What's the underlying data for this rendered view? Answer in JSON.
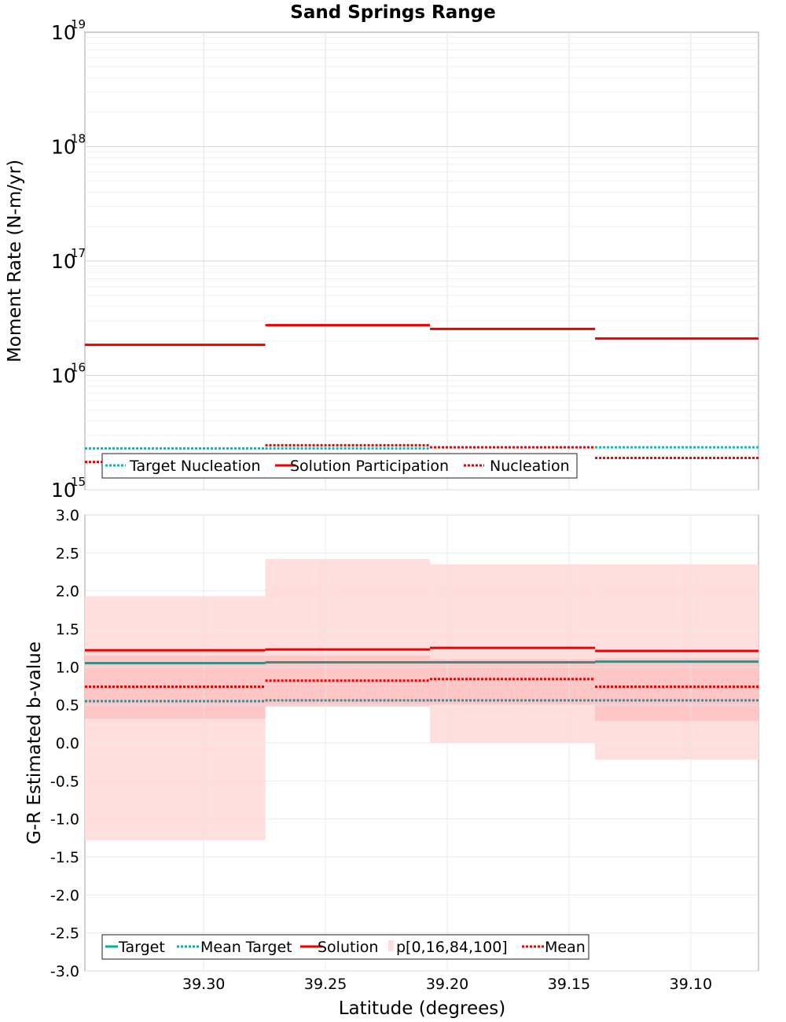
{
  "chart_data": [
    {
      "type": "line",
      "title": "Sand Springs Range",
      "xlabel": "",
      "ylabel": "Moment Rate (N-m/yr)",
      "yscale": "log",
      "ylim": [
        1000000000000000.0,
        1e+19
      ],
      "xlim": [
        39.3488,
        39.0722
      ],
      "y_ticks": [
        {
          "base": "10",
          "exp": "15"
        },
        {
          "base": "10",
          "exp": "16"
        },
        {
          "base": "10",
          "exp": "17"
        },
        {
          "base": "10",
          "exp": "18"
        },
        {
          "base": "10",
          "exp": "19"
        }
      ],
      "segments": [
        {
          "x0": 39.3488,
          "x1": 39.2747
        },
        {
          "x0": 39.2747,
          "x1": 39.2071
        },
        {
          "x0": 39.2071,
          "x1": 39.1393
        },
        {
          "x0": 39.1393,
          "x1": 39.0722
        }
      ],
      "series": [
        {
          "name": "Target Nucleation",
          "style": "dotted",
          "color": "#00bcc4",
          "values": [
            2300000000000000.0,
            2300000000000000.0,
            2350000000000000.0,
            2350000000000000.0
          ]
        },
        {
          "name": "Solution Participation",
          "style": "solid",
          "color": "#ee0000",
          "values": [
            1.85e+16,
            2.75e+16,
            2.55e+16,
            2.1e+16
          ]
        },
        {
          "name": "Nucleation",
          "style": "dotted",
          "color": "#ee0000",
          "values": [
            1750000000000000.0,
            2450000000000000.0,
            2350000000000000.0,
            1900000000000000.0
          ]
        }
      ],
      "legend_position": "bottom-left"
    },
    {
      "type": "line",
      "title": "",
      "xlabel": "Latitude (degrees)",
      "ylabel": "G-R Estimated b-value",
      "ylim": [
        -3.0,
        3.0
      ],
      "xlim": [
        39.3488,
        39.0722
      ],
      "y_ticks": [
        "3.0",
        "2.5",
        "2.0",
        "1.5",
        "1.0",
        "0.5",
        "0.0",
        "-0.5",
        "-1.0",
        "-1.5",
        "-2.0",
        "-2.5",
        "-3.0"
      ],
      "x_ticks": [
        "39.30",
        "39.25",
        "39.20",
        "39.15",
        "39.10"
      ],
      "segments": [
        {
          "x0": 39.3488,
          "x1": 39.2747
        },
        {
          "x0": 39.2747,
          "x1": 39.2071
        },
        {
          "x0": 39.2071,
          "x1": 39.1393
        },
        {
          "x0": 39.1393,
          "x1": 39.0722
        }
      ],
      "bands": [
        {
          "p0": -1.28,
          "p16": 0.32,
          "p84": 1.15,
          "p100": 1.93
        },
        {
          "p0": 0.48,
          "p16": 0.48,
          "p84": 1.15,
          "p100": 2.42
        },
        {
          "p0": 0.0,
          "p16": 0.5,
          "p84": 1.1,
          "p100": 2.35
        },
        {
          "p0": -0.22,
          "p16": 0.29,
          "p84": 1.12,
          "p100": 2.35
        }
      ],
      "series": [
        {
          "name": "Target",
          "style": "solid",
          "color": "#00b09a",
          "values": [
            1.05,
            1.06,
            1.06,
            1.07
          ]
        },
        {
          "name": "Mean Target",
          "style": "dotted",
          "color": "#00b0b0",
          "values": [
            0.55,
            0.56,
            0.56,
            0.56
          ]
        },
        {
          "name": "Solution",
          "style": "solid",
          "color": "#ee0000",
          "values": [
            1.22,
            1.23,
            1.25,
            1.21
          ]
        },
        {
          "name": "p[0,16,84,100]",
          "style": "band",
          "color": "#ffc8c8",
          "values": []
        },
        {
          "name": "Mean",
          "style": "dotted",
          "color": "#ee0000",
          "values": [
            0.74,
            0.82,
            0.84,
            0.74
          ]
        }
      ],
      "legend_position": "bottom-left"
    }
  ]
}
